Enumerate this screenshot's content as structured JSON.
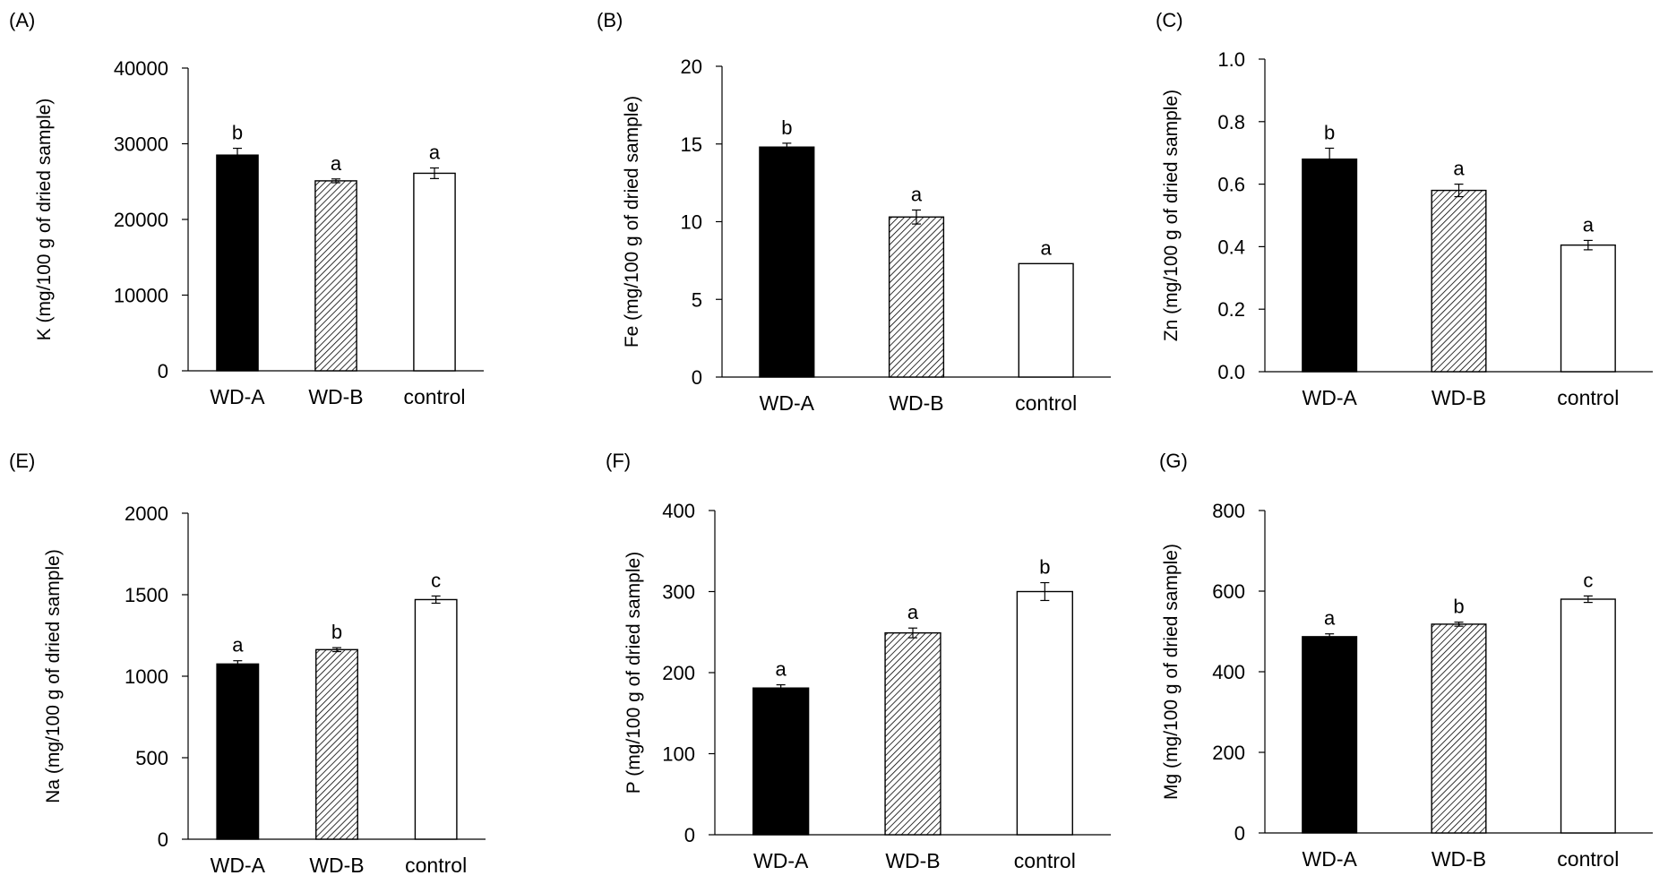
{
  "chart_data": [
    {
      "type": "bar",
      "panel": "(A)",
      "categories": [
        "WD-A",
        "WD-B",
        "control"
      ],
      "values": [
        28500,
        25100,
        26100
      ],
      "errors": [
        900,
        250,
        700
      ],
      "letters": [
        "b",
        "a",
        "a"
      ],
      "ylabel": "K (mg/100 g of dried sample)",
      "ylim": [
        0,
        40000
      ],
      "yticks": [
        0,
        10000,
        20000,
        30000,
        40000
      ],
      "ytick_labels": [
        "0",
        "10000",
        "20000",
        "30000",
        "40000"
      ],
      "fills": [
        "solid",
        "hatched",
        "empty"
      ]
    },
    {
      "type": "bar",
      "panel": "(B)",
      "categories": [
        "WD-A",
        "WD-B",
        "control"
      ],
      "values": [
        14.8,
        10.3,
        7.3
      ],
      "errors": [
        0.25,
        0.45,
        0.0
      ],
      "letters": [
        "b",
        "a",
        "a"
      ],
      "ylabel": "Fe (mg/100 g of dried sample)",
      "ylim": [
        0,
        20
      ],
      "yticks": [
        0,
        5,
        10,
        15,
        20
      ],
      "ytick_labels": [
        "0",
        "5",
        "10",
        "15",
        "20"
      ],
      "fills": [
        "solid",
        "hatched",
        "empty"
      ]
    },
    {
      "type": "bar",
      "panel": "(C)",
      "categories": [
        "WD-A",
        "WD-B",
        "control"
      ],
      "values": [
        0.68,
        0.58,
        0.405
      ],
      "errors": [
        0.035,
        0.02,
        0.015
      ],
      "letters": [
        "b",
        "a",
        "a"
      ],
      "ylabel": "Zn (mg/100 g of dried sample)",
      "ylim": [
        0,
        1.0
      ],
      "yticks": [
        0,
        0.2,
        0.4,
        0.6,
        0.8,
        1.0
      ],
      "ytick_labels": [
        "0.0",
        "0.2",
        "0.4",
        "0.6",
        "0.8",
        "1.0"
      ],
      "fills": [
        "solid",
        "hatched",
        "empty"
      ]
    },
    {
      "type": "bar",
      "panel": "(E)",
      "categories": [
        "WD-A",
        "WD-B",
        "control"
      ],
      "values": [
        1075,
        1163,
        1470
      ],
      "errors": [
        20,
        12,
        22
      ],
      "letters": [
        "a",
        "b",
        "c"
      ],
      "ylabel": "Na (mg/100 g of dried sample)",
      "ylim": [
        0,
        2000
      ],
      "yticks": [
        0,
        500,
        1000,
        1500,
        2000
      ],
      "ytick_labels": [
        "0",
        "500",
        "1000",
        "1500",
        "2000"
      ],
      "fills": [
        "solid",
        "hatched",
        "empty"
      ]
    },
    {
      "type": "bar",
      "panel": "(F)",
      "categories": [
        "WD-A",
        "WD-B",
        "control"
      ],
      "values": [
        181,
        249,
        300
      ],
      "errors": [
        4,
        6,
        11
      ],
      "letters": [
        "a",
        "a",
        "b"
      ],
      "ylabel": "P (mg/100 g of dried sample)",
      "ylim": [
        0,
        400
      ],
      "yticks": [
        0,
        100,
        200,
        300,
        400
      ],
      "ytick_labels": [
        "0",
        "100",
        "200",
        "300",
        "400"
      ],
      "fills": [
        "solid",
        "hatched",
        "empty"
      ]
    },
    {
      "type": "bar",
      "panel": "(G)",
      "categories": [
        "WD-A",
        "WD-B",
        "control"
      ],
      "values": [
        487,
        518,
        580
      ],
      "errors": [
        7,
        5,
        8
      ],
      "letters": [
        "a",
        "b",
        "c"
      ],
      "ylabel": "Mg (mg/100 g of dried sample)",
      "ylim": [
        0,
        800
      ],
      "yticks": [
        0,
        200,
        400,
        600,
        800
      ],
      "ytick_labels": [
        "0",
        "200",
        "400",
        "600",
        "800"
      ],
      "fills": [
        "solid",
        "hatched",
        "empty"
      ]
    }
  ]
}
